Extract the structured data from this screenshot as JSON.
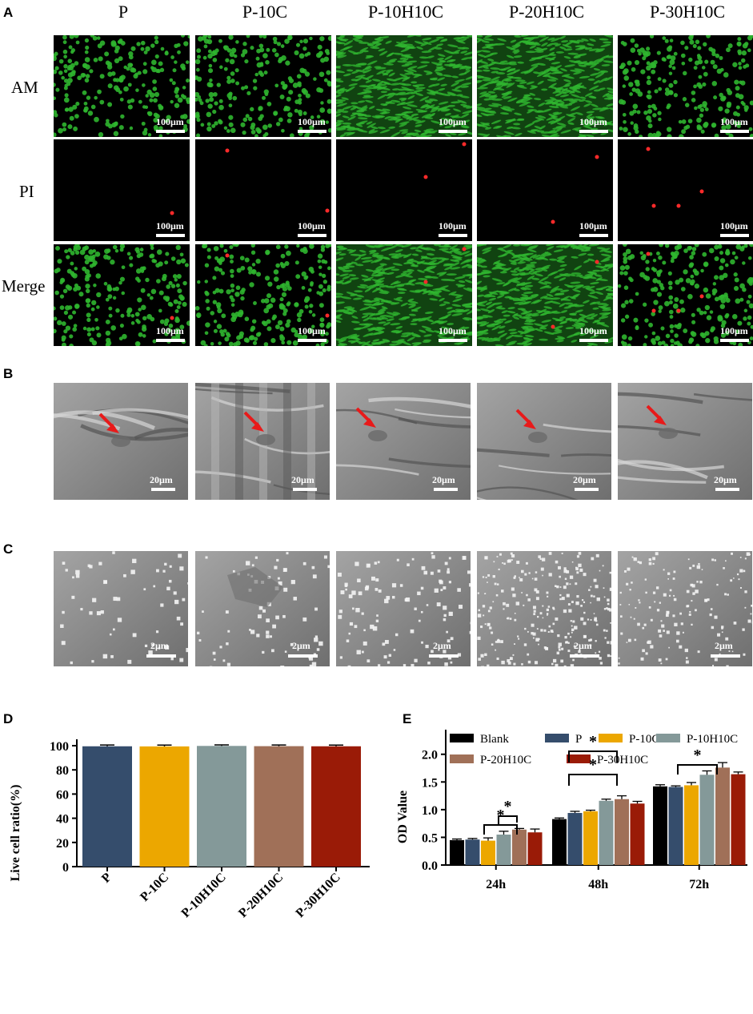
{
  "panels": {
    "a": "A",
    "b": "B",
    "c": "C",
    "d": "D",
    "e": "E"
  },
  "groups": [
    "P",
    "P-10C",
    "P-10H10C",
    "P-20H10C",
    "P-30H10C"
  ],
  "rows_a": [
    "AM",
    "PI",
    "Merge"
  ],
  "scales": {
    "fluor": "100μm",
    "sem_b": "20μm",
    "sem_c": "2μm"
  },
  "colors": {
    "P": "#354d6c",
    "P-10C": "#eca700",
    "P-10H10C": "#849999",
    "P-20H10C": "#a07058",
    "P-30H10C": "#9a1b07",
    "Blank": "#000000",
    "live": "#2fb52f",
    "dead": "#ff2a2a",
    "arrow": "#e81a1a"
  },
  "chart_data": [
    {
      "type": "bar",
      "title": "",
      "ylabel": "Live cell ratio(%)",
      "xlabel": "",
      "categories": [
        "P",
        "P-10C",
        "P-10H10C",
        "P-20H10C",
        "P-30H10C"
      ],
      "values": [
        99.5,
        99.4,
        99.8,
        99.6,
        99.5
      ],
      "errors": [
        0.4,
        0.4,
        0.2,
        0.3,
        0.3
      ],
      "ylim": [
        0,
        100
      ],
      "yticks": [
        "0",
        "20",
        "40",
        "60",
        "80",
        "100"
      ],
      "grid": false
    },
    {
      "type": "bar",
      "title": "",
      "ylabel": "OD Value",
      "xlabel": "",
      "categories": [
        "24h",
        "48h",
        "72h"
      ],
      "yticks": [
        "0.0",
        "0.5",
        "1.0",
        "1.5",
        "2.0"
      ],
      "ylim": [
        0,
        2.3
      ],
      "legend": "top",
      "grid": false,
      "significance": "*",
      "series": [
        {
          "name": "Blank",
          "values": [
            0.45,
            0.83,
            1.42
          ],
          "errors": [
            0.02,
            0.02,
            0.03
          ]
        },
        {
          "name": "P",
          "values": [
            0.46,
            0.94,
            1.41
          ],
          "errors": [
            0.02,
            0.03,
            0.02
          ]
        },
        {
          "name": "P-10C",
          "values": [
            0.44,
            0.97,
            1.44
          ],
          "errors": [
            0.05,
            0.02,
            0.05
          ]
        },
        {
          "name": "P-10H10C",
          "values": [
            0.55,
            1.16,
            1.63
          ],
          "errors": [
            0.06,
            0.03,
            0.07
          ]
        },
        {
          "name": "P-20H10C",
          "values": [
            0.64,
            1.19,
            1.76
          ],
          "errors": [
            0.02,
            0.06,
            0.09
          ]
        },
        {
          "name": "P-30H10C",
          "values": [
            0.59,
            1.11,
            1.64
          ],
          "errors": [
            0.06,
            0.04,
            0.04
          ]
        }
      ]
    }
  ]
}
